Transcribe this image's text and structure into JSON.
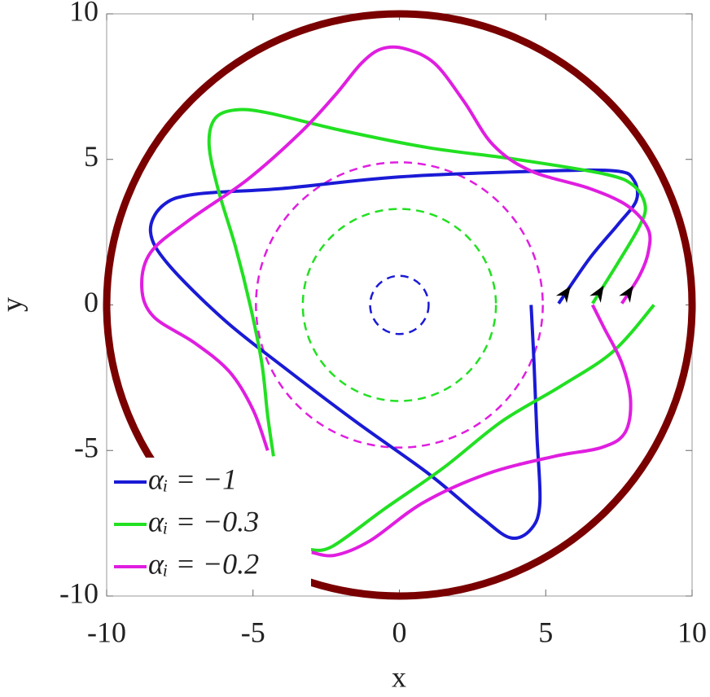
{
  "chart_data": {
    "type": "line",
    "x_label": "x",
    "y_label": "y",
    "xlim": [
      -10,
      10
    ],
    "ylim": [
      -10,
      10
    ],
    "xticks": [
      -10,
      -5,
      0,
      5,
      10
    ],
    "yticks": [
      -10,
      -5,
      0,
      5,
      10
    ],
    "legend": "lower left",
    "circles": [
      {
        "r": 10,
        "color": "#7a0000",
        "dashed": false
      },
      {
        "r": 1,
        "color": "#1a1ad6",
        "dashed": true
      },
      {
        "r": 3.3,
        "color": "#22e022",
        "dashed": true
      },
      {
        "r": 4.9,
        "color": "#e01ee0",
        "dashed": true
      }
    ],
    "series": [
      {
        "name": "αᵢ = −1",
        "color": "#1a1ad6",
        "x": [
          5.44,
          6.5,
          7.5,
          8.1,
          8.0,
          7.4,
          5,
          0,
          -4,
          -7.0,
          -8.1,
          -8.5,
          -7.9,
          -6,
          -4,
          -1.5,
          1,
          2.8,
          3.8,
          4.5,
          4.8,
          4.7,
          4.6,
          4.5
        ],
        "y": [
          0.05,
          1.6,
          2.8,
          3.6,
          4.3,
          4.6,
          4.6,
          4.4,
          4.0,
          3.8,
          3.4,
          2.5,
          1.4,
          -0.5,
          -2.1,
          -4.0,
          -5.8,
          -7.3,
          -8.0,
          -7.7,
          -6.8,
          -4.5,
          -2,
          0
        ]
      },
      {
        "name": "αᵢ = −0.3",
        "color": "#22e022",
        "x": [
          6.6,
          7.5,
          8.2,
          8.4,
          8.0,
          7.0,
          4,
          1,
          -2,
          -4.5,
          -5.6,
          -6.3,
          -6.5,
          -6.2,
          -5.6,
          -5.1,
          -4.7,
          -4.5,
          -4.3,
          null,
          -3.1,
          -2.3,
          -0.5,
          1.5,
          3.5,
          5.5,
          7.3,
          8.7
        ],
        "y": [
          0.05,
          1.5,
          2.7,
          3.4,
          4.1,
          4.5,
          5.0,
          5.4,
          6.0,
          6.6,
          6.7,
          6.4,
          5.5,
          4.0,
          2,
          0,
          -2,
          -3.8,
          -5.2,
          null,
          -8.4,
          -8.3,
          -7.0,
          -5.6,
          -4.0,
          -2.8,
          -1.6,
          0
        ]
      },
      {
        "name": "αᵢ = −0.2",
        "color": "#e01ee0",
        "x": [
          7.6,
          8.2,
          8.5,
          8.5,
          7.8,
          6.5,
          4.5,
          3.2,
          2.2,
          1.2,
          0.2,
          -0.6,
          -1.3,
          -2.2,
          -3.4,
          -5.2,
          -7.2,
          -8.5,
          -8.8,
          -8.4,
          -7.0,
          -5.8,
          -5.0,
          -4.5,
          null,
          -3.0,
          -2.2,
          -1,
          0.8,
          3,
          5.3,
          6.9,
          7.7,
          7.9,
          7.6,
          7.0,
          6.6
        ],
        "y": [
          0.05,
          1.0,
          1.8,
          2.6,
          3.4,
          4.0,
          4.6,
          5.5,
          7.0,
          8.3,
          8.8,
          8.8,
          8.3,
          7.2,
          5.9,
          4.3,
          2.9,
          1.8,
          0.6,
          -0.4,
          -1.3,
          -2.3,
          -3.6,
          -5.0,
          null,
          -8.5,
          -8.6,
          -8.1,
          -6.8,
          -5.8,
          -5.2,
          -4.9,
          -4.4,
          -3.3,
          -2.0,
          -0.8,
          0
        ]
      }
    ]
  }
}
